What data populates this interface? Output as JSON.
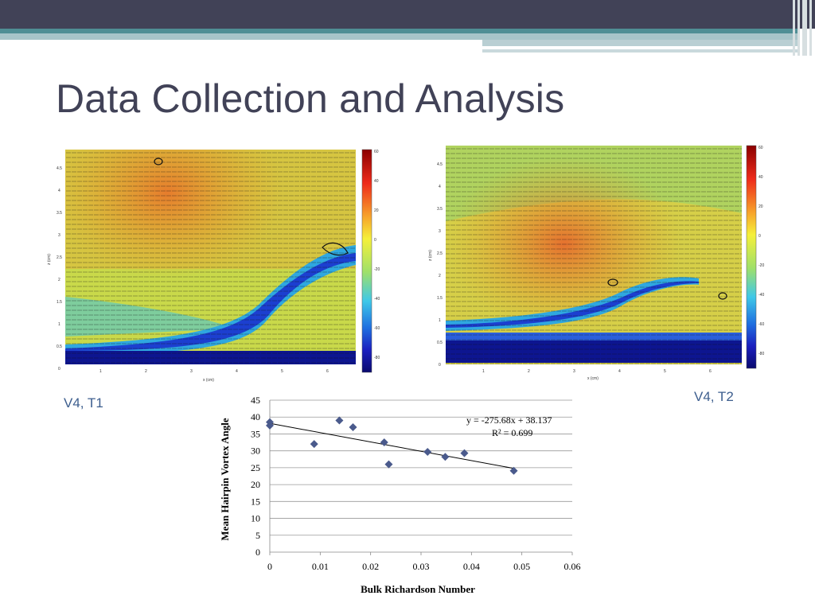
{
  "slide": {
    "title": "Data Collection and Analysis",
    "caption_left": "V4, T1",
    "caption_right": "V4, T2"
  },
  "colorbar_ticks": [
    "60",
    "40",
    "20",
    "0",
    "-20",
    "-40",
    "-60",
    "-80"
  ],
  "field_axes": {
    "y_label": "z (cm)",
    "x_label": "x (cm)",
    "y_ticks": [
      "4.5",
      "4",
      "3.5",
      "3",
      "2.5",
      "2",
      "1.5",
      "1",
      "0.5",
      "0"
    ],
    "x_ticks": [
      "1",
      "2",
      "3",
      "4",
      "5",
      "6"
    ]
  },
  "chart_data": {
    "type": "scatter",
    "xlabel": "Bulk Richardson Number",
    "ylabel": "Mean Hairpin Vortex Angle",
    "xlim": [
      0,
      0.06
    ],
    "ylim": [
      0,
      45
    ],
    "x_ticks": [
      "0",
      "0.01",
      "0.02",
      "0.03",
      "0.04",
      "0.05",
      "0.06"
    ],
    "y_ticks": [
      "0",
      "5",
      "10",
      "15",
      "20",
      "25",
      "30",
      "35",
      "40",
      "45"
    ],
    "grid": true,
    "points": [
      {
        "x": 0.0,
        "y": 38.5
      },
      {
        "x": 0.0,
        "y": 37.5
      },
      {
        "x": 0.0088,
        "y": 32.0
      },
      {
        "x": 0.0138,
        "y": 39.0
      },
      {
        "x": 0.0165,
        "y": 37.0
      },
      {
        "x": 0.0227,
        "y": 32.5
      },
      {
        "x": 0.0236,
        "y": 26.0
      },
      {
        "x": 0.0313,
        "y": 29.7
      },
      {
        "x": 0.0348,
        "y": 28.2
      },
      {
        "x": 0.0386,
        "y": 29.3
      },
      {
        "x": 0.0484,
        "y": 24.1
      }
    ],
    "trendline": {
      "slope": -275.68,
      "intercept": 38.137,
      "x_range": [
        0,
        0.0484
      ]
    },
    "equation": "y = -275.68x + 38.137",
    "r_squared": "R² = 0.699",
    "marker_color": "#4a5a8c"
  }
}
